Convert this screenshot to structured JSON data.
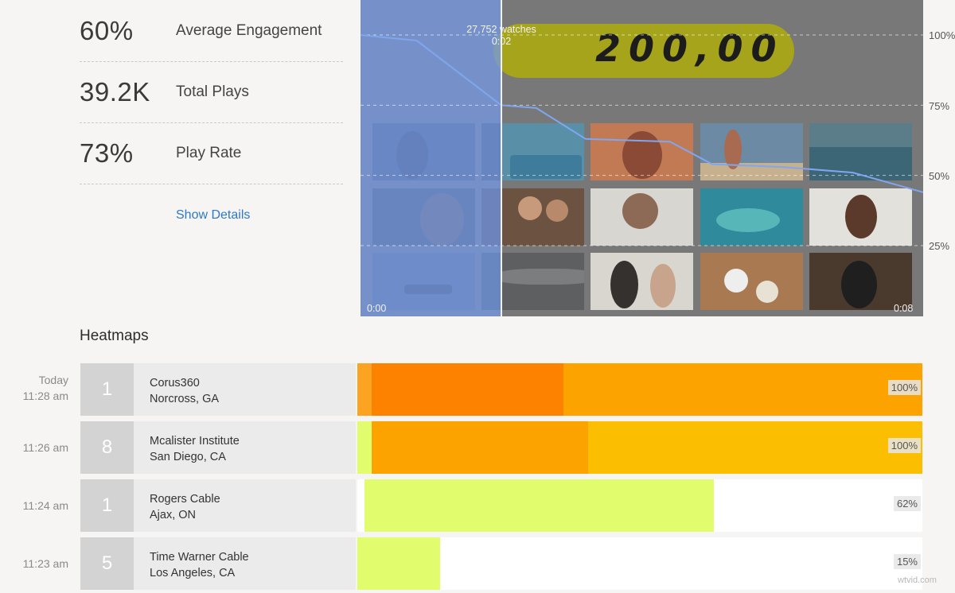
{
  "stats": [
    {
      "value": "60%",
      "label": "Average Engagement"
    },
    {
      "value": "39.2K",
      "label": "Total Plays"
    },
    {
      "value": "73%",
      "label": "Play Rate"
    }
  ],
  "show_details_label": "Show Details",
  "video": {
    "overlay_number": "200,00",
    "watches": "27,752 watches",
    "playhead_time": "0:02",
    "time_start": "0:00",
    "time_end": "0:08",
    "y_labels": [
      "100%",
      "75%",
      "50%",
      "25%"
    ]
  },
  "chart_data": {
    "type": "line",
    "xlabel": "",
    "ylabel": "",
    "xlim": [
      0,
      8
    ],
    "ylim": [
      0,
      120
    ],
    "x": [
      0,
      0.8,
      2.0,
      2.5,
      3.2,
      4.4,
      5.0,
      6.0,
      7.0,
      8.0
    ],
    "values": [
      100,
      98,
      75,
      74,
      63,
      62,
      54,
      53,
      51,
      44
    ],
    "y_ticks": [
      "100%",
      "75%",
      "50%",
      "25%"
    ]
  },
  "heatmaps": {
    "title": "Heatmaps",
    "rows": [
      {
        "date": "Today",
        "time": "11:28 am",
        "count": "1",
        "company": "Corus360",
        "location": "Norcross, GA",
        "percent": "100%",
        "segments": [
          {
            "start": 0,
            "end": 0.025,
            "color": "#fca321"
          },
          {
            "start": 0.025,
            "end": 0.365,
            "color": "#fc8200"
          },
          {
            "start": 0.365,
            "end": 1.0,
            "color": "#fca300"
          }
        ]
      },
      {
        "date": "",
        "time": "11:26 am",
        "count": "8",
        "company": "Mcalister Institute",
        "location": "San Diego, CA",
        "percent": "100%",
        "segments": [
          {
            "start": 0,
            "end": 0.025,
            "color": "#e1fc6c"
          },
          {
            "start": 0.025,
            "end": 0.408,
            "color": "#fca300"
          },
          {
            "start": 0.408,
            "end": 1.0,
            "color": "#fcbe00"
          }
        ]
      },
      {
        "date": "",
        "time": "11:24 am",
        "count": "1",
        "company": "Rogers Cable",
        "location": "Ajax, ON",
        "percent": "62%",
        "segments": [
          {
            "start": 0.012,
            "end": 0.631,
            "color": "#e1fc6c"
          }
        ]
      },
      {
        "date": "",
        "time": "11:23 am",
        "count": "5",
        "company": "Time Warner Cable",
        "location": "Los Angeles, CA",
        "percent": "15%",
        "segments": [
          {
            "start": 0,
            "end": 0.146,
            "color": "#e1fc6c"
          }
        ]
      }
    ]
  },
  "watermark": "wtvid.com"
}
